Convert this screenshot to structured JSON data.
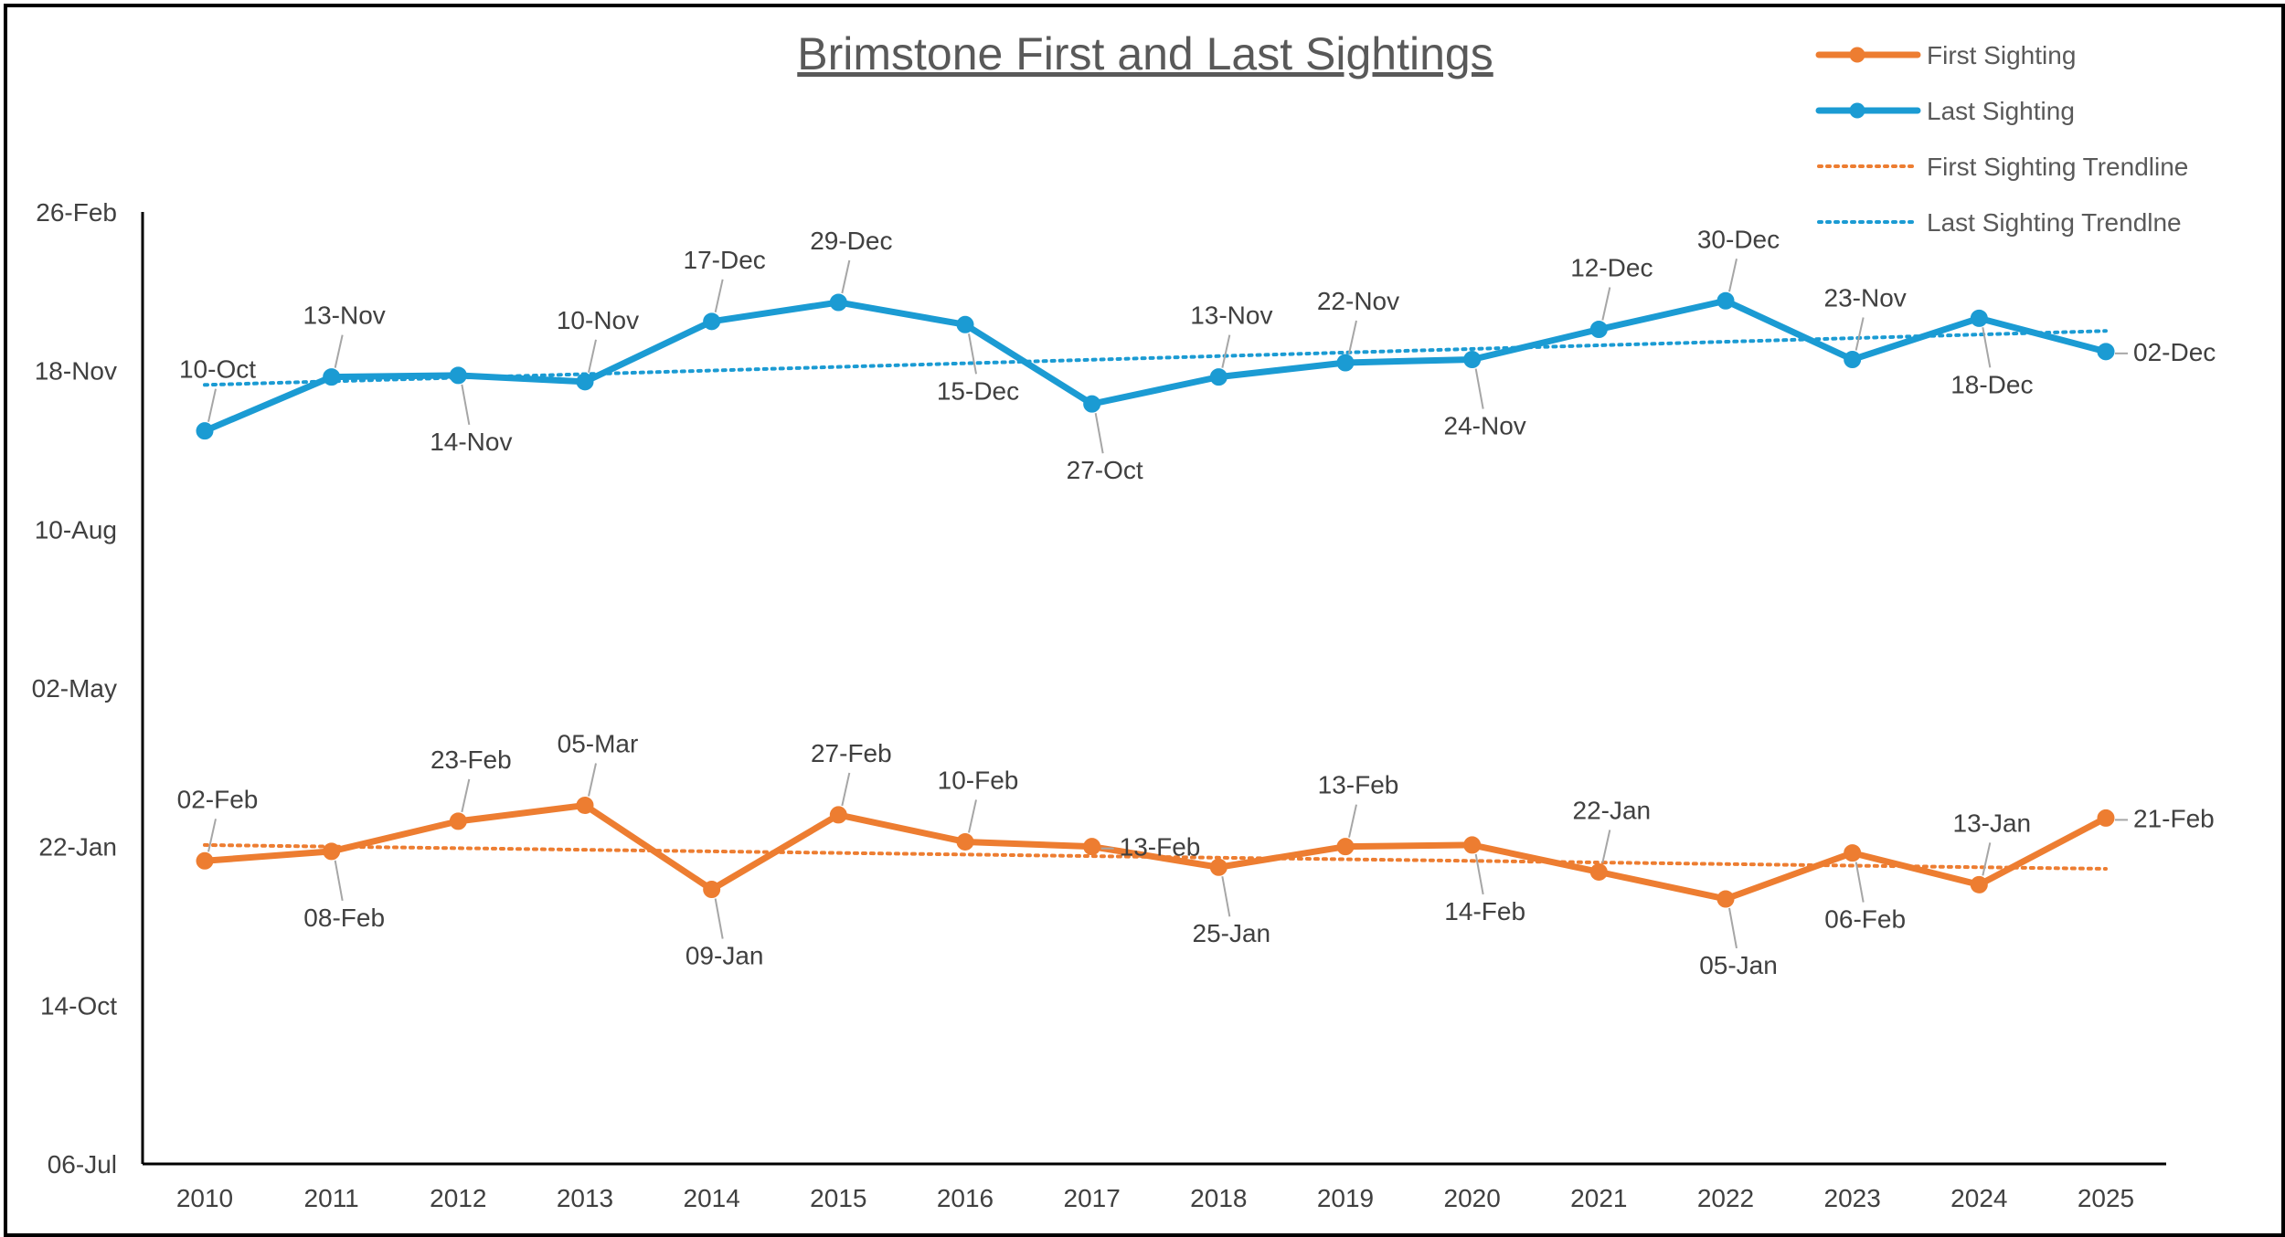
{
  "chart_data": {
    "type": "line",
    "title": "Brimstone First and Last Sightings",
    "xlabel": "",
    "ylabel": "",
    "categories": [
      "2010",
      "2011",
      "2012",
      "2013",
      "2014",
      "2015",
      "2016",
      "2017",
      "2018",
      "2019",
      "2020",
      "2021",
      "2022",
      "2023",
      "2024",
      "2025"
    ],
    "y_axis_ticks": [
      "26-Feb",
      "18-Nov",
      "10-Aug",
      "02-May",
      "22-Jan",
      "14-Oct",
      "06-Jul"
    ],
    "y_axis_tick_days": [
      -23,
      -123,
      -223,
      -323,
      -423,
      -523,
      -623
    ],
    "ylim_days": [
      -623,
      -23
    ],
    "y_units": "days relative to 1 Jan (negative = calendar day of prior year)",
    "colors": {
      "first": "#ED7D31",
      "last": "#1B9BD3",
      "axis": "#000000",
      "text": "#404040",
      "leader": "#A6A6A6"
    },
    "legend": [
      {
        "label": "First Sighting",
        "style": "line-marker",
        "series": "first"
      },
      {
        "label": "Last Sighting",
        "style": "line-marker",
        "series": "last"
      },
      {
        "label": "First Sighting Trendline",
        "style": "dotted",
        "series": "first"
      },
      {
        "label": "Last Sighting Trendlne",
        "style": "dotted",
        "series": "last"
      }
    ],
    "series": [
      {
        "name": "First Sighting",
        "key": "first",
        "labels": [
          "02-Feb",
          "08-Feb",
          "23-Feb",
          "05-Mar",
          "09-Jan",
          "27-Feb",
          "10-Feb",
          "13-Feb",
          "25-Jan",
          "13-Feb",
          "14-Feb",
          "22-Jan",
          "05-Jan",
          "06-Feb",
          "13-Jan",
          "21-Feb"
        ],
        "values_days": [
          -432,
          -426,
          -407,
          -397,
          -450,
          -403,
          -420,
          -423,
          -436,
          -423,
          -422,
          -439,
          -456,
          -427,
          -447,
          -405
        ],
        "label_position": [
          "above",
          "below",
          "above",
          "above",
          "below",
          "above",
          "above",
          "right",
          "below",
          "above",
          "below",
          "above",
          "below",
          "below",
          "above",
          "right"
        ],
        "trend_days": [
          -422,
          -437
        ]
      },
      {
        "name": "Last Sighting",
        "key": "last",
        "labels": [
          "10-Oct",
          "13-Nov",
          "14-Nov",
          "10-Nov",
          "17-Dec",
          "29-Dec",
          "15-Dec",
          "27-Oct",
          "13-Nov",
          "22-Nov",
          "24-Nov",
          "12-Dec",
          "30-Dec",
          "23-Nov",
          "18-Dec",
          "02-Dec"
        ],
        "values_days": [
          -161,
          -127,
          -126,
          -130,
          -92,
          -80,
          -94,
          -144,
          -127,
          -118,
          -116,
          -97,
          -79,
          -116,
          -90,
          -111
        ],
        "label_position": [
          "above",
          "above",
          "below",
          "above",
          "above",
          "above",
          "below",
          "below",
          "above",
          "above",
          "below",
          "above",
          "above",
          "above",
          "below",
          "right"
        ],
        "trend_days": [
          -132,
          -98
        ]
      }
    ]
  }
}
